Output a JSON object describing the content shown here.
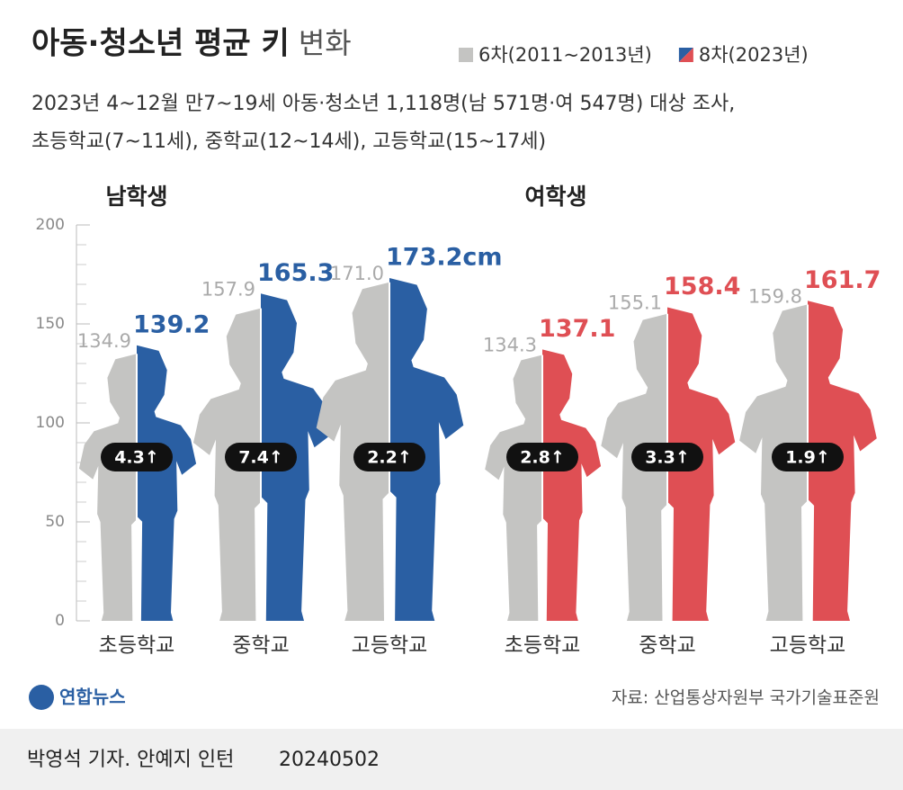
{
  "chart_data": {
    "type": "pictogram-bar",
    "title": "아동·청소년 평균 키",
    "title_tail": "변화",
    "notes": [
      "2023년 4~12월 만7~19세 아동·청소년 1,118명(남 571명·여 547명) 대상 조사,",
      "초등학교(7~11세), 중학교(12~14세), 고등학교(15~17세)"
    ],
    "legend": [
      {
        "name": "6차(2011~2013년)",
        "colors": [
          "#c4c4c2"
        ]
      },
      {
        "name": "8차(2023년)",
        "colors": [
          "#2a5fa3",
          "#df4f54"
        ]
      }
    ],
    "groups": [
      {
        "name": "남학생",
        "categories": [
          "초등학교",
          "중학교",
          "고등학교"
        ],
        "series": [
          {
            "color": "#c4c4c2",
            "values": [
              134.9,
              157.9,
              171.0
            ],
            "value_labels": [
              "134.9",
              "157.9",
              "171.0"
            ]
          },
          {
            "color": "#2a5fa3",
            "values": [
              139.2,
              165.3,
              173.2
            ],
            "value_labels": [
              "139.2",
              "165.3",
              "173.2cm"
            ]
          }
        ],
        "changes": {
          "values": [
            4.3,
            7.4,
            2.2
          ],
          "value_labels": [
            "4.3↑",
            "7.4↑",
            "2.2↑"
          ]
        }
      },
      {
        "name": "여학생",
        "categories": [
          "초등학교",
          "중학교",
          "고등학교"
        ],
        "series": [
          {
            "color": "#c4c4c2",
            "values": [
              134.3,
              155.1,
              159.8
            ]
          },
          {
            "color": "#df4f54",
            "values": [
              137.1,
              158.4,
              161.7
            ]
          }
        ],
        "changes": {
          "values": [
            2.8,
            3.3,
            1.9
          ],
          "value_labels": [
            "2.8↑",
            "3.3↑",
            "1.9↑"
          ]
        }
      }
    ],
    "ylim": [
      0,
      200
    ],
    "yticks": [
      0,
      50,
      100,
      150,
      200
    ],
    "yminorticks": [
      10,
      20,
      30,
      40,
      60,
      70,
      80,
      90,
      110,
      120,
      130,
      140,
      160,
      170,
      180,
      190
    ],
    "source": "자료: 산업통상자원부 국가기술표준원",
    "logo": "연합뉴스",
    "byline": "박영석 기자. 안예지 인턴",
    "date": "20240502"
  }
}
